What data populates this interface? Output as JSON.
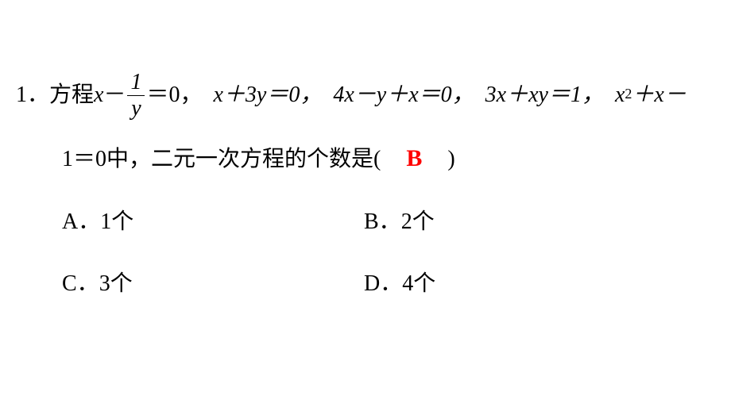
{
  "question": {
    "number": "1．",
    "prefix": "方程",
    "eq1_pre": "x",
    "eq1_minus": "－",
    "eq1_frac_num": "1",
    "eq1_frac_den": "y",
    "eq1_post": "＝0，",
    "eq2": "x＋3y＝0，",
    "eq3": "4x－y＋x＝0，",
    "eq4": "3x＋xy＝1，",
    "eq5_pre": "x",
    "eq5_sup": "2",
    "eq5_post": "＋x－",
    "line2_pre": "1＝0中，二元一次方程的个数是(",
    "line2_post": ")",
    "answer": "B",
    "answer_color": "#ff0000"
  },
  "options": {
    "a_letter": "A．",
    "a_text": "1个",
    "b_letter": "B．",
    "b_text": "2个",
    "c_letter": "C．",
    "c_text": "3个",
    "d_letter": "D．",
    "d_text": "4个"
  },
  "style": {
    "text_color": "#000000",
    "background_color": "#ffffff",
    "base_fontsize": 28
  }
}
